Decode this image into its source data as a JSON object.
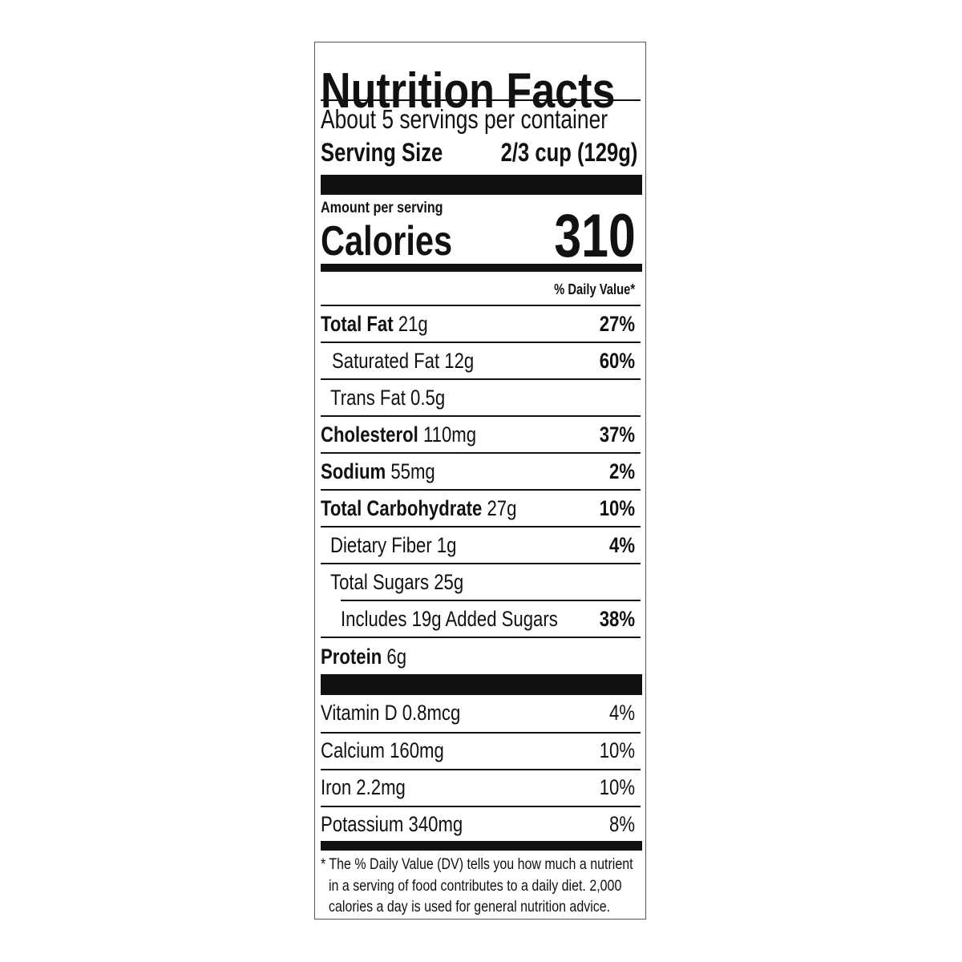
{
  "title": "Nutrition Facts",
  "servings_per_container": "About 5 servings per container",
  "serving_size": {
    "label": "Serving Size",
    "value": "2/3 cup (129g)"
  },
  "amount_per_serving": "Amount per serving",
  "calories": {
    "label": "Calories",
    "value": "310"
  },
  "daily_value_header": "% Daily Value*",
  "nutrients": [
    {
      "name": "Total Fat",
      "amount": "21g",
      "dv": "27%"
    },
    {
      "name": "Saturated Fat 12g",
      "dv": "60%"
    },
    {
      "name": "Trans Fat 0.5g",
      "dv": ""
    },
    {
      "name": "Cholesterol",
      "amount": "110mg",
      "dv": "37%"
    },
    {
      "name": "Sodium",
      "amount": "55mg",
      "dv": "2%"
    },
    {
      "name": "Total Carbohydrate",
      "amount": "27g",
      "dv": "10%"
    },
    {
      "name": "Dietary Fiber 1g",
      "dv": "4%"
    },
    {
      "name": "Total Sugars 25g",
      "dv": ""
    },
    {
      "name": "Includes 19g Added Sugars",
      "dv": "38%"
    },
    {
      "name": "Protein",
      "amount": "6g",
      "dv": ""
    }
  ],
  "vitamins": [
    {
      "name": "Vitamin D 0.8mcg",
      "dv": "4%"
    },
    {
      "name": "Calcium 160mg",
      "dv": "10%"
    },
    {
      "name": "Iron 2.2mg",
      "dv": "10%"
    },
    {
      "name": "Potassium 340mg",
      "dv": "8%"
    }
  ],
  "footnote": [
    "* The % Daily Value (DV) tells you how much a nutrient",
    "in a serving of food contributes to a daily diet. 2,000",
    "calories a day is used for general nutrition advice."
  ]
}
